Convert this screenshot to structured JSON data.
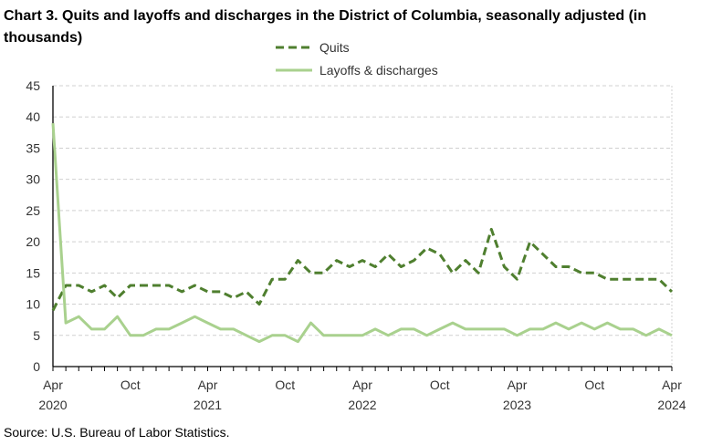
{
  "chart_data": {
    "type": "line",
    "title": "Chart 3. Quits and layoffs and discharges in the District of Columbia, seasonally adjusted (in thousands)",
    "xlabel": "",
    "ylabel": "",
    "ylim": [
      0,
      45
    ],
    "yticks": [
      0,
      5,
      10,
      15,
      20,
      25,
      30,
      35,
      40,
      45
    ],
    "grid": true,
    "legend_position": "top-center",
    "x_start": "Apr 2020",
    "x_end": "Apr 2024",
    "xtick_labels": [
      {
        "month_index": 0,
        "month": "Apr",
        "year": "2020"
      },
      {
        "month_index": 6,
        "month": "Oct",
        "year": ""
      },
      {
        "month_index": 12,
        "month": "Apr",
        "year": "2021"
      },
      {
        "month_index": 18,
        "month": "Oct",
        "year": ""
      },
      {
        "month_index": 24,
        "month": "Apr",
        "year": "2022"
      },
      {
        "month_index": 30,
        "month": "Oct",
        "year": ""
      },
      {
        "month_index": 36,
        "month": "Apr",
        "year": "2023"
      },
      {
        "month_index": 42,
        "month": "Oct",
        "year": ""
      },
      {
        "month_index": 48,
        "month": "Apr",
        "year": "2024"
      }
    ],
    "series": [
      {
        "name": "Quits",
        "color": "#4f7f2f",
        "dashed": true,
        "values": [
          9,
          13,
          13,
          12,
          13,
          11,
          13,
          13,
          13,
          13,
          12,
          13,
          12,
          12,
          11,
          12,
          10,
          14,
          14,
          17,
          15,
          15,
          17,
          16,
          17,
          16,
          18,
          16,
          17,
          19,
          18,
          15,
          17,
          15,
          22,
          16,
          14,
          20,
          18,
          16,
          16,
          15,
          15,
          14,
          14,
          14,
          14,
          14,
          12
        ]
      },
      {
        "name": "Layoffs & discharges",
        "color": "#a9d18e",
        "dashed": false,
        "values": [
          39,
          7,
          8,
          6,
          6,
          8,
          5,
          5,
          6,
          6,
          7,
          8,
          7,
          6,
          6,
          5,
          4,
          5,
          5,
          4,
          7,
          5,
          5,
          5,
          5,
          6,
          5,
          6,
          6,
          5,
          6,
          7,
          6,
          6,
          6,
          6,
          5,
          6,
          6,
          7,
          6,
          7,
          6,
          7,
          6,
          6,
          5,
          6,
          5
        ]
      }
    ]
  },
  "source": "Source: U.S. Bureau of Labor Statistics."
}
